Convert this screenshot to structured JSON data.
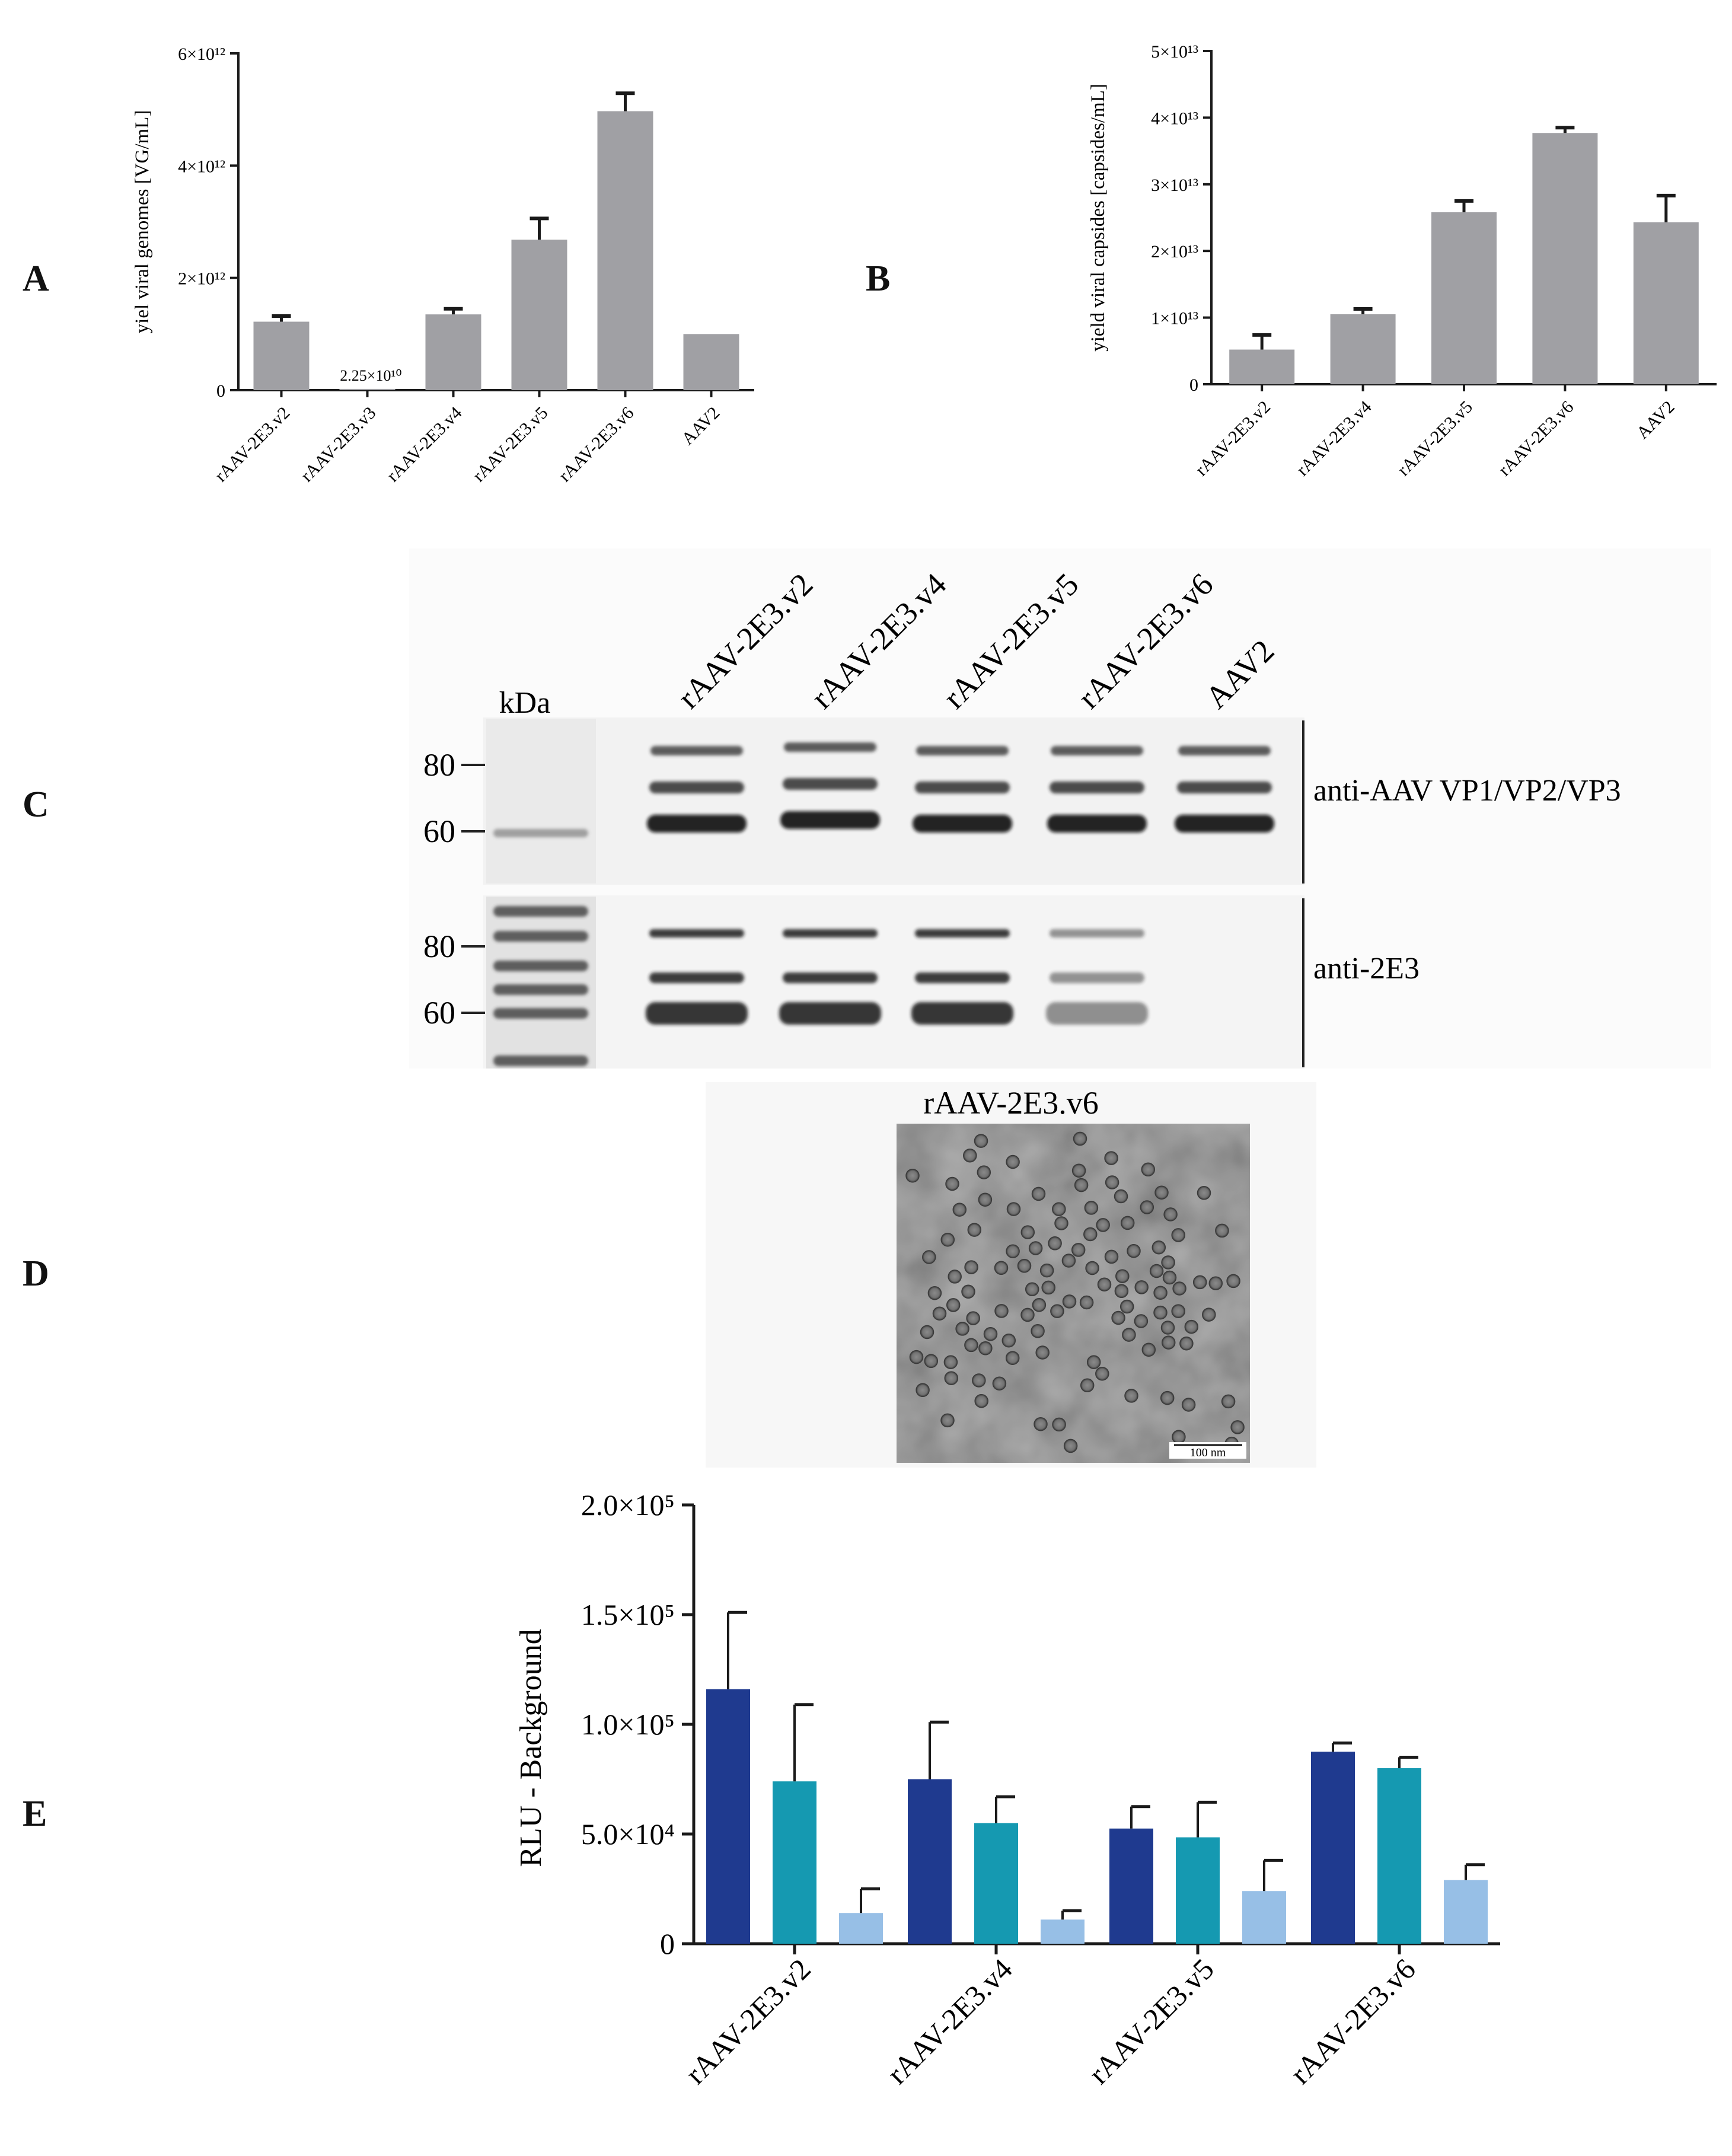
{
  "panel_labels": {
    "A": "A",
    "B": "B",
    "C": "C",
    "D": "D",
    "E": "E"
  },
  "colors": {
    "grey_bar": "#a0a0a4",
    "series_dark": "#1f3a8f",
    "series_teal": "#1599b1",
    "series_light": "#97bfe6",
    "axis": "#1a1a1a"
  },
  "chart_data": [
    {
      "panel": "A",
      "type": "bar",
      "ylabel": "yiel viral genomes [VG/mL]",
      "ylim": [
        0,
        6000000000000.0
      ],
      "yticks": [
        {
          "value": 0,
          "label": "0"
        },
        {
          "value": 2000000000000.0,
          "label": "2×10¹²"
        },
        {
          "value": 4000000000000.0,
          "label": "4×10¹²"
        },
        {
          "value": 6000000000000.0,
          "label": "6×10¹²"
        }
      ],
      "categories": [
        "rAAV-2E3.v2",
        "rAAV-2E3.v3",
        "rAAV-2E3.v4",
        "rAAV-2E3.v5",
        "rAAV-2E3.v6",
        "AAV2"
      ],
      "values": [
        1220000000000.0,
        22500000000.0,
        1350000000000.0,
        2680000000000.0,
        4970000000000.0,
        1000000000000.0
      ],
      "errors": [
        100000000000.0,
        0,
        100000000000.0,
        380000000000.0,
        320000000000.0,
        0
      ],
      "annotations": [
        {
          "category": "rAAV-2E3.v3",
          "text": "2.25×10¹⁰"
        }
      ],
      "color": "#a0a0a4"
    },
    {
      "panel": "B",
      "type": "bar",
      "ylabel": "yield viral capsides [capsides/mL]",
      "ylim": [
        0,
        50000000000000.0
      ],
      "yticks": [
        {
          "value": 0,
          "label": "0"
        },
        {
          "value": 10000000000000.0,
          "label": "1×10¹³"
        },
        {
          "value": 20000000000000.0,
          "label": "2×10¹³"
        },
        {
          "value": 30000000000000.0,
          "label": "3×10¹³"
        },
        {
          "value": 40000000000000.0,
          "label": "4×10¹³"
        },
        {
          "value": 50000000000000.0,
          "label": "5×10¹³"
        }
      ],
      "categories": [
        "rAAV-2E3.v2",
        "rAAV-2E3.v4",
        "rAAV-2E3.v5",
        "rAAV-2E3.v6",
        "AAV2"
      ],
      "values": [
        5200000000000.0,
        10500000000000.0,
        25800000000000.0,
        37700000000000.0,
        24300000000000.0
      ],
      "errors": [
        2200000000000.0,
        800000000000.0,
        1700000000000.0,
        800000000000.0,
        4000000000000.0
      ],
      "color": "#a0a0a4"
    },
    {
      "panel": "E",
      "type": "bar",
      "ylabel": "RLU - Background",
      "ylim": [
        0,
        200000.0
      ],
      "yticks": [
        {
          "value": 0,
          "label": "0"
        },
        {
          "value": 50000.0,
          "label": "5.0×10⁴"
        },
        {
          "value": 100000.0,
          "label": "1.0×10⁵"
        },
        {
          "value": 150000.0,
          "label": "1.5×10⁵"
        },
        {
          "value": 200000.0,
          "label": "2.0×10⁵"
        }
      ],
      "categories": [
        "rAAV-2E3.v2",
        "rAAV-2E3.v4",
        "rAAV-2E3.v5",
        "rAAV-2E3.v6"
      ],
      "series": [
        {
          "color": "#1f3a8f",
          "values": [
            116000.0,
            75000.0,
            52500.0,
            87500.0
          ],
          "errors": [
            35000.0,
            26000.0,
            10000.0,
            4000.0
          ]
        },
        {
          "color": "#1599b1",
          "values": [
            74000.0,
            55000.0,
            48500.0,
            80000.0
          ],
          "errors": [
            35000.0,
            12000.0,
            16000.0,
            5000.0
          ]
        },
        {
          "color": "#97bfe6",
          "values": [
            14000.0,
            11000.0,
            24000.0,
            29000.0
          ],
          "errors": [
            11000.0,
            4000.0,
            14000.0,
            7000.0
          ]
        }
      ]
    }
  ],
  "blot": {
    "lane_labels": [
      "rAAV-2E3.v2",
      "rAAV-2E3.v4",
      "rAAV-2E3.v5",
      "rAAV-2E3.v6",
      "AAV2"
    ],
    "kda_label": "kDa",
    "top": {
      "label": "anti-AAV VP1/VP2/VP3",
      "markers": [
        "80",
        "60"
      ]
    },
    "bottom": {
      "label": "anti-2E3",
      "markers": [
        "80",
        "60"
      ]
    }
  },
  "micrograph": {
    "title": "rAAV-2E3.v6",
    "scale_bar": "100 nm"
  }
}
